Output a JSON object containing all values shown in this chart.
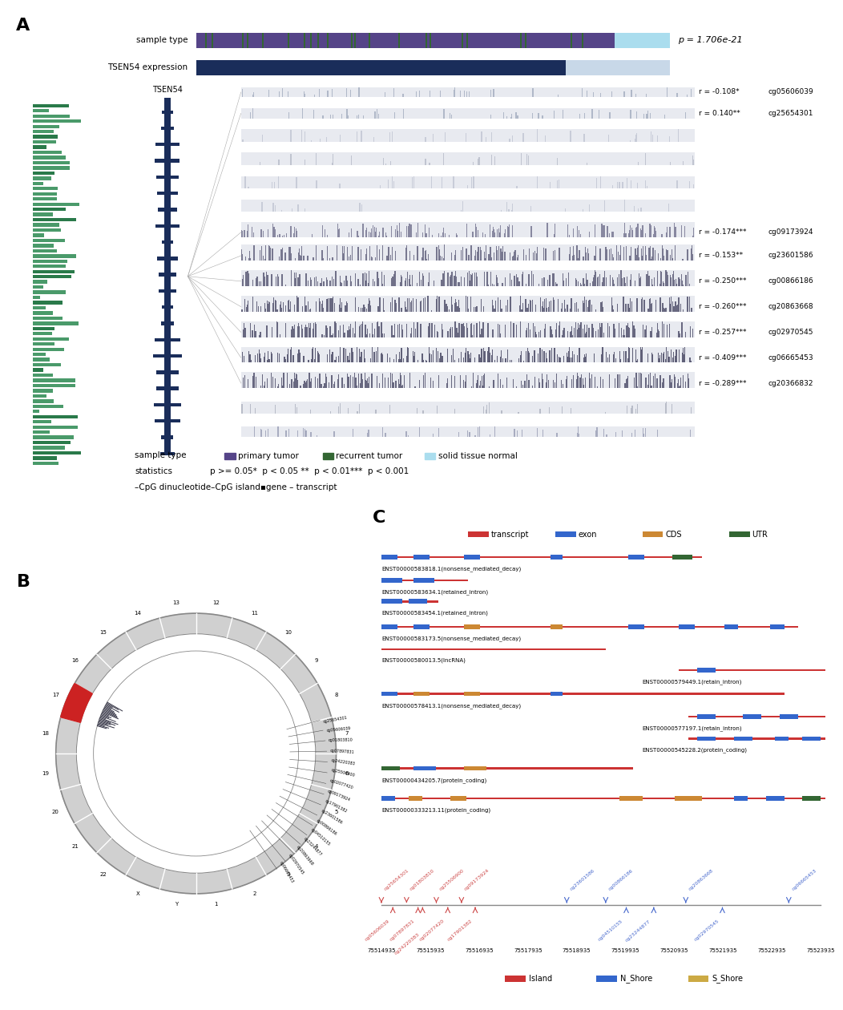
{
  "title_A": "A",
  "title_B": "B",
  "title_C": "C",
  "sample_type_label": "sample type",
  "expression_label": "TSEN54 expression",
  "p_value": "p = 1.706e-21",
  "gene_label": "TSEN54",
  "cpg_sites": [
    {
      "id": "cg05606039",
      "r": "r = -0.108*"
    },
    {
      "id": "cg25654301",
      "r": "r = 0.140**"
    },
    {
      "id": "cg09173924",
      "r": "r = -0.174***"
    },
    {
      "id": "cg23601586",
      "r": "r = -0.153**"
    },
    {
      "id": "cg00866186",
      "r": "r = -0.250***"
    },
    {
      "id": "cg20863668",
      "r": "r = -0.260***"
    },
    {
      "id": "cg02970545",
      "r": "r = -0.257***"
    },
    {
      "id": "cg06665453",
      "r": "r = -0.409***"
    },
    {
      "id": "cg20366832",
      "r": "r = -0.289***"
    }
  ],
  "background_color": "#ffffff",
  "transcript_color": "#cc3333",
  "exon_color": "#3366cc",
  "cds_color": "#cc8833",
  "utr_color": "#336633",
  "x_labels": [
    "75514935",
    "75515935",
    "75516935",
    "75517935",
    "75518935",
    "75519935",
    "75520935",
    "75521935",
    "75522935",
    "75523935"
  ],
  "island_legend": [
    "Island",
    "N_Shore",
    "S_Shore"
  ],
  "island_colors": [
    "#cc3333",
    "#3366cc",
    "#ccaa44"
  ]
}
